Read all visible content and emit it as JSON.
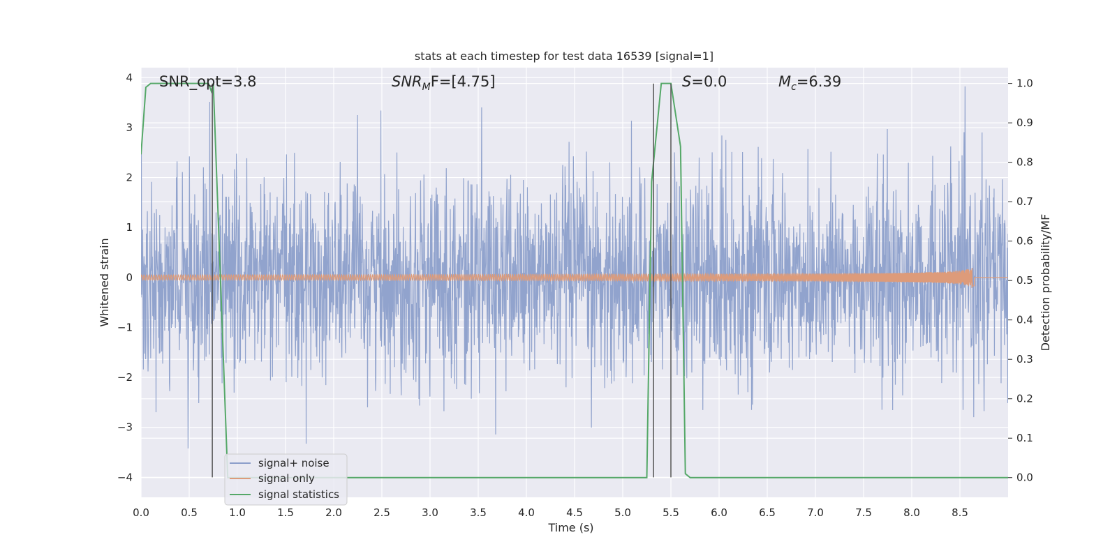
{
  "chart_data": {
    "type": "line",
    "title": "stats at each timestep for test data 16539 [signal=1]",
    "xlabel": "Time (s)",
    "ylabel": "Whitened strain",
    "y2label": "Detection probability/MF",
    "xlim": [
      0.0,
      9.0
    ],
    "ylim": [
      -4.4,
      4.2
    ],
    "y2lim": [
      -0.05,
      1.04
    ],
    "x_ticks": [
      0.0,
      0.5,
      1.0,
      1.5,
      2.0,
      2.5,
      3.0,
      3.5,
      4.0,
      4.5,
      5.0,
      5.5,
      6.0,
      6.5,
      7.0,
      7.5,
      8.0,
      8.5
    ],
    "x_tick_labels": [
      "0.0",
      "0.5",
      "1.0",
      "1.5",
      "2.0",
      "2.5",
      "3.0",
      "3.5",
      "4.0",
      "4.5",
      "5.0",
      "5.5",
      "6.0",
      "6.5",
      "7.0",
      "7.5",
      "8.0",
      "8.5"
    ],
    "y_ticks": [
      -4,
      -3,
      -2,
      -1,
      0,
      1,
      2,
      3,
      4
    ],
    "y_tick_labels": [
      "−4",
      "−3",
      "−2",
      "−1",
      "0",
      "1",
      "2",
      "3",
      "4"
    ],
    "y2_ticks": [
      0.0,
      0.1,
      0.2,
      0.3,
      0.4,
      0.5,
      0.6,
      0.7,
      0.8,
      0.9,
      1.0
    ],
    "y2_tick_labels": [
      "0.0",
      "0.1",
      "0.2",
      "0.3",
      "0.4",
      "0.5",
      "0.6",
      "0.7",
      "0.8",
      "0.9",
      "1.0"
    ],
    "grid": true,
    "legend_position": "bottom-left",
    "annotations": {
      "snr_opt": "SNR_opt=3.8",
      "snr_mf_base": "SNR",
      "snr_mf_sub": "M",
      "snr_mf_rest": "F=[4.75]",
      "s_base": "S",
      "s_rest": "=0.0",
      "mc_base": "M",
      "mc_sub": "c",
      "mc_rest": "=6.39"
    },
    "series": [
      {
        "name": "signal+ noise",
        "color": "#8c9fca",
        "description_axis": "left",
        "noise_sigma": 1.0,
        "duration_s": 9.0
      },
      {
        "name": "signal only",
        "color": "#dd9b7a",
        "axis": "left",
        "chirp_end_s": 8.65,
        "chirp_peak_amplitude": 0.38
      },
      {
        "name": "signal statistics",
        "color": "#55a868",
        "axis": "right",
        "x": [
          0.0,
          0.05,
          0.1,
          0.2,
          0.7,
          0.73,
          0.75,
          0.9,
          5.25,
          5.3,
          5.4,
          5.5,
          5.6,
          5.65,
          5.7,
          9.0
        ],
        "y": [
          0.82,
          0.99,
          1.0,
          1.0,
          1.0,
          0.98,
          1.0,
          0.0,
          0.0,
          0.75,
          1.0,
          1.0,
          0.84,
          0.01,
          0.0,
          0.0
        ]
      }
    ],
    "vertical_lines": {
      "color": "#555555",
      "x": [
        0.74,
        5.32,
        5.5
      ]
    }
  }
}
